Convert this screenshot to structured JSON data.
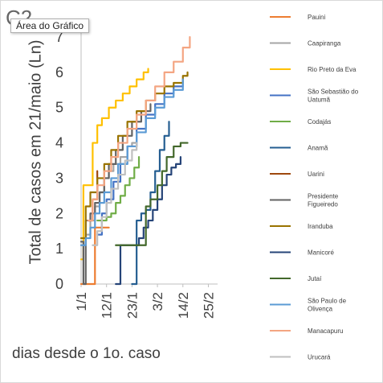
{
  "corner_label": "C2",
  "tooltip": "Área do Gráfico",
  "chart_data": {
    "type": "line",
    "xlabel": "dias desde o 1o. caso",
    "ylabel": "Total de casos em 21/maio (Ln)",
    "ylim": [
      0,
      7
    ],
    "xlim": [
      0,
      59
    ],
    "yticks": [
      0,
      1,
      2,
      3,
      4,
      5,
      6,
      7
    ],
    "xtick_labels": [
      {
        "label": "1/1",
        "x": 0
      },
      {
        "label": "12/1",
        "x": 11
      },
      {
        "label": "23/1",
        "x": 22
      },
      {
        "label": "3/2",
        "x": 33
      },
      {
        "label": "14/2",
        "x": 44
      },
      {
        "label": "25/2",
        "x": 55
      }
    ],
    "grid": false,
    "legend_position": "right",
    "series": [
      {
        "name": "Pauini",
        "color": "#ed7d31",
        "x": [
          0,
          5,
          6,
          8,
          9,
          11,
          12
        ],
        "y": [
          0,
          0,
          1.6,
          1.6,
          1.6,
          1.6,
          1.6
        ]
      },
      {
        "name": "Caapiranga",
        "color": "#a5a5a5",
        "x": [
          0,
          2,
          4,
          6,
          8,
          10,
          12,
          14,
          17,
          20,
          22,
          24
        ],
        "y": [
          1.1,
          1.4,
          1.8,
          2.2,
          2.6,
          3.0,
          3.2,
          3.4,
          3.6,
          3.9,
          4.0,
          4.0
        ]
      },
      {
        "name": "Rio Preto da Eva",
        "color": "#ffc000",
        "x": [
          0,
          1,
          3,
          5,
          7,
          9,
          12,
          15,
          18,
          21,
          24,
          27,
          29
        ],
        "y": [
          0.7,
          2.8,
          2.8,
          4.0,
          4.5,
          4.7,
          5.0,
          5.2,
          5.4,
          5.6,
          5.8,
          6.0,
          6.1
        ]
      },
      {
        "name": "São Sebastião do Uatumã",
        "color": "#4472c4",
        "x": [
          7,
          9,
          11,
          14,
          17,
          20,
          24,
          28,
          32,
          36,
          40,
          44
        ],
        "y": [
          1.4,
          2.0,
          2.4,
          2.9,
          3.4,
          3.9,
          4.4,
          4.8,
          5.1,
          5.4,
          5.6,
          5.8
        ]
      },
      {
        "name": "Codajás",
        "color": "#70ad47",
        "x": [
          7,
          9,
          11,
          13,
          15,
          17,
          19,
          21,
          23,
          25
        ],
        "y": [
          1.8,
          1.8,
          1.9,
          2.0,
          2.3,
          2.5,
          2.8,
          3.0,
          3.3,
          3.6
        ]
      },
      {
        "name": "Anamã",
        "color": "#255e91",
        "x": [
          22,
          24,
          26,
          28,
          30,
          32,
          34,
          36,
          38
        ],
        "y": [
          0,
          1.8,
          2.0,
          2.1,
          2.6,
          3.2,
          3.8,
          4.2,
          4.6
        ]
      },
      {
        "name": "Uarini",
        "color": "#9e480e",
        "x": [
          3,
          5,
          7
        ],
        "y": [
          1.8,
          2.4,
          3.2
        ]
      },
      {
        "name": "Presidente Figueiredo",
        "color": "#636363",
        "x": [
          0,
          1,
          2,
          4,
          6,
          8,
          10,
          12,
          15,
          18,
          22,
          26,
          30
        ],
        "y": [
          1.2,
          0,
          1.8,
          2.0,
          2.3,
          2.6,
          3.0,
          3.4,
          3.8,
          4.2,
          4.6,
          4.9,
          5.1
        ]
      },
      {
        "name": "Iranduba",
        "color": "#997300",
        "x": [
          0,
          2,
          4,
          7,
          10,
          13,
          16,
          20,
          24,
          28,
          32,
          36,
          40,
          44,
          46
        ],
        "y": [
          1.3,
          2.2,
          2.6,
          3.0,
          3.4,
          3.8,
          4.2,
          4.6,
          4.9,
          5.2,
          5.4,
          5.6,
          5.7,
          5.9,
          6.0
        ]
      },
      {
        "name": "Manicoré",
        "color": "#264478",
        "x": [
          15,
          17,
          19,
          21,
          23,
          25,
          27,
          29,
          31,
          33,
          35,
          37,
          39,
          41,
          43
        ],
        "y": [
          0,
          1.1,
          1.1,
          1.1,
          1.1,
          1.3,
          1.6,
          1.8,
          2.1,
          2.4,
          2.8,
          3.1,
          3.3,
          3.4,
          3.6
        ]
      },
      {
        "name": "Jutaí",
        "color": "#43682b",
        "x": [
          15,
          17,
          20,
          24,
          27,
          28,
          30,
          33,
          35,
          37,
          40,
          43,
          46
        ],
        "y": [
          1.1,
          1.1,
          1.1,
          1.1,
          1.1,
          2.2,
          2.4,
          2.8,
          3.2,
          3.6,
          3.9,
          4.0,
          4.0
        ]
      },
      {
        "name": "São Paulo de Olivença",
        "color": "#5b9bd5",
        "x": [
          0,
          2,
          4,
          6,
          8,
          10,
          13,
          16,
          20,
          24,
          28,
          32,
          36,
          40,
          44
        ],
        "y": [
          1.1,
          1.3,
          1.6,
          2.0,
          2.3,
          2.6,
          3.0,
          3.4,
          3.9,
          4.3,
          4.7,
          5.0,
          5.3,
          5.5,
          5.8
        ]
      },
      {
        "name": "Manacapuru",
        "color": "#f4a582",
        "x": [
          3,
          5,
          7,
          10,
          13,
          16,
          20,
          24,
          28,
          32,
          36,
          40,
          44,
          47
        ],
        "y": [
          1.8,
          2.4,
          2.8,
          3.2,
          3.6,
          4.0,
          4.4,
          4.8,
          5.2,
          5.6,
          6.0,
          6.3,
          6.7,
          7.0
        ]
      },
      {
        "name": "Urucará",
        "color": "#bfbfbf",
        "x": [
          5,
          7,
          9,
          11,
          13,
          16,
          19,
          22,
          24
        ],
        "y": [
          1.1,
          1.5,
          1.9,
          2.3,
          2.7,
          3.1,
          3.5,
          3.8,
          4.0
        ]
      }
    ]
  }
}
